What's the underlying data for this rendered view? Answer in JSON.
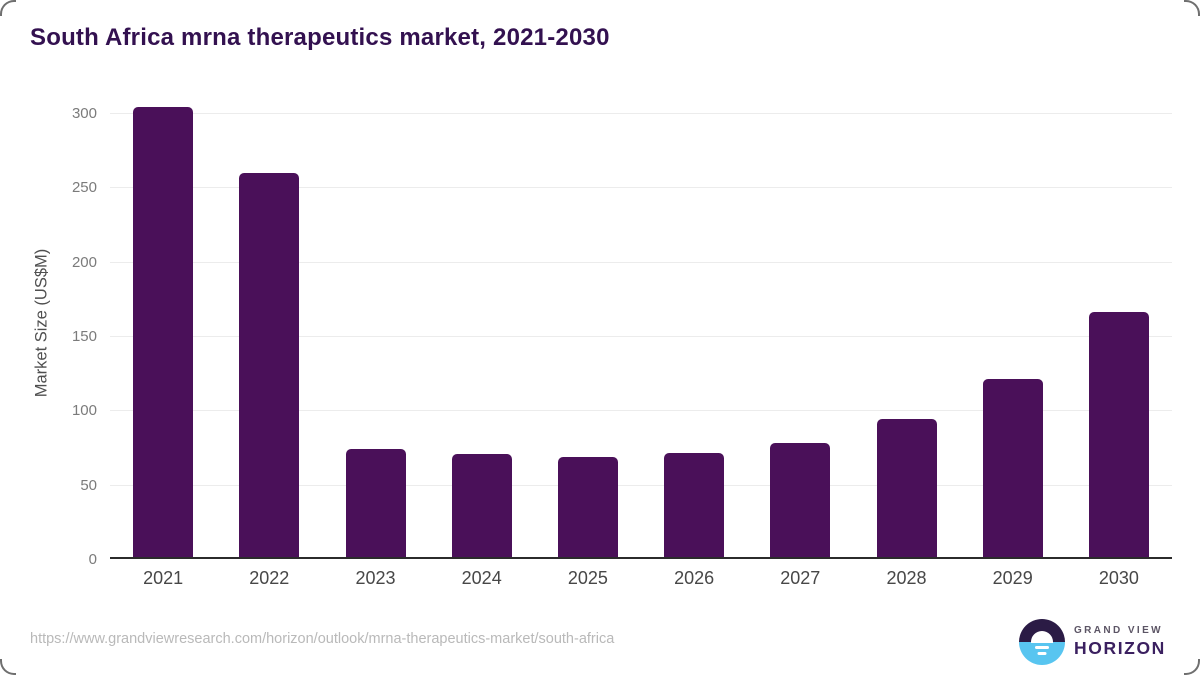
{
  "page": {
    "footer": {
      "source_url": "https://www.grandviewresearch.com/horizon/outlook/mrna-therapeutics-market/south-africa",
      "brand_line1": "GRAND VIEW",
      "brand_line2": "HORIZON"
    }
  },
  "chart_data": {
    "type": "bar",
    "title": "South Africa mrna therapeutics market, 2021-2030",
    "categories": [
      "2021",
      "2022",
      "2023",
      "2024",
      "2025",
      "2026",
      "2027",
      "2028",
      "2029",
      "2030"
    ],
    "values": [
      303,
      258,
      73,
      69,
      67,
      70,
      77,
      93,
      120,
      165
    ],
    "xlabel": "",
    "ylabel": "Market Size (US$M)",
    "yticks": [
      0,
      50,
      100,
      150,
      200,
      250,
      300
    ],
    "ylim": [
      0,
      300
    ],
    "grid": true,
    "legend": false,
    "bar_color": "#4a1059"
  },
  "colors": {
    "title": "#331150",
    "bar": "#4a1059",
    "gridline": "#ececec",
    "axis_line": "#2b2b2b",
    "y_tick_label": "#7b7b7b",
    "x_tick_label": "#474747",
    "source_url": "#b9b9b9",
    "logo_dark": "#2b1b45",
    "logo_blue": "#58c5f0",
    "logo_text": "#3b2060"
  }
}
